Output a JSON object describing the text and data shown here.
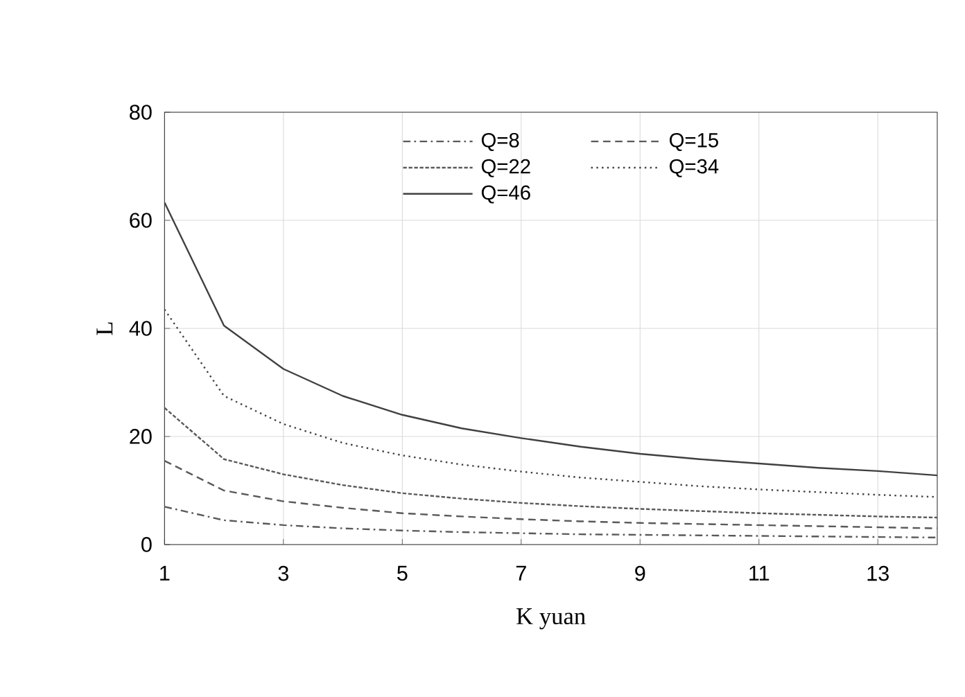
{
  "chart_data": {
    "type": "line",
    "xlabel": "K yuan",
    "ylabel": "L",
    "x": [
      1,
      2,
      3,
      4,
      5,
      6,
      7,
      8,
      9,
      10,
      11,
      12,
      13,
      14
    ],
    "series": [
      {
        "name": "Q=8",
        "color": "#595959",
        "line_style": "dashdot",
        "values": [
          7.0,
          4.5,
          3.6,
          3.0,
          2.6,
          2.3,
          2.1,
          1.9,
          1.8,
          1.7,
          1.6,
          1.5,
          1.4,
          1.3
        ]
      },
      {
        "name": "Q=15",
        "color": "#595959",
        "line_style": "dashed",
        "values": [
          15.5,
          10.0,
          8.0,
          6.8,
          5.8,
          5.2,
          4.7,
          4.3,
          4.0,
          3.8,
          3.6,
          3.4,
          3.2,
          3.0
        ]
      },
      {
        "name": "Q=22",
        "color": "#595959",
        "line_style": "densely dashed",
        "values": [
          25.3,
          15.8,
          13.0,
          11.0,
          9.5,
          8.5,
          7.7,
          7.1,
          6.6,
          6.2,
          5.8,
          5.5,
          5.2,
          5.0
        ]
      },
      {
        "name": "Q=34",
        "color": "#404040",
        "line_style": "dotted",
        "values": [
          43.5,
          27.5,
          22.3,
          18.8,
          16.5,
          14.8,
          13.5,
          12.4,
          11.6,
          10.8,
          10.2,
          9.7,
          9.2,
          8.8
        ]
      },
      {
        "name": "Q=46",
        "color": "#404040",
        "line_style": "solid",
        "values": [
          63.3,
          40.5,
          32.5,
          27.5,
          24.0,
          21.5,
          19.7,
          18.1,
          16.8,
          15.8,
          15.0,
          14.2,
          13.6,
          12.8
        ]
      }
    ],
    "xlim": [
      1,
      14
    ],
    "xticks": [
      1,
      3,
      5,
      7,
      9,
      11,
      13
    ],
    "ylim": [
      0,
      80
    ],
    "yticks": [
      0,
      20,
      40,
      60,
      80
    ],
    "grid": true,
    "legend": "top right",
    "marker": "none"
  }
}
